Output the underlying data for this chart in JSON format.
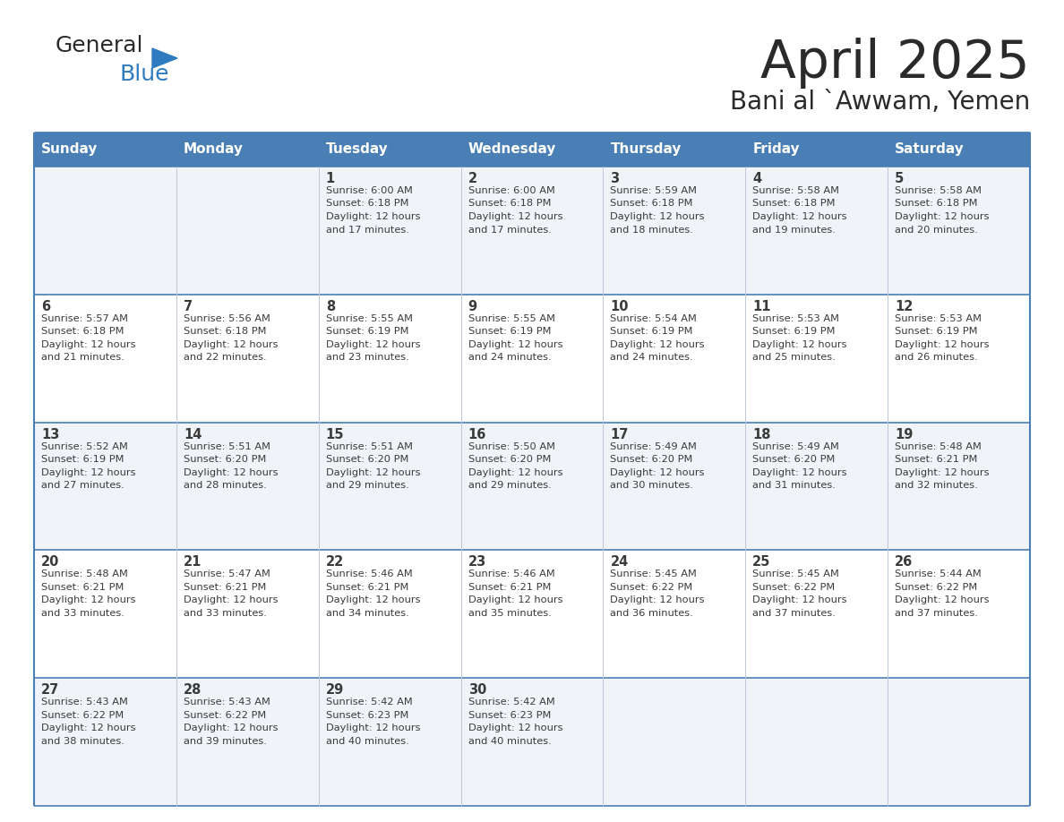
{
  "title": "April 2025",
  "subtitle": "Bani al `Awwam, Yemen",
  "days_of_week": [
    "Sunday",
    "Monday",
    "Tuesday",
    "Wednesday",
    "Thursday",
    "Friday",
    "Saturday"
  ],
  "header_bg": "#4a7fb5",
  "header_text": "#ffffff",
  "cell_bg_odd": "#f0f4f8",
  "cell_bg_even": "#ffffff",
  "border_color": "#4a7fb5",
  "row_border_color": "#4a7fb5",
  "text_color": "#3a3a3a",
  "weeks": [
    [
      {
        "day": "",
        "lines": []
      },
      {
        "day": "",
        "lines": []
      },
      {
        "day": "1",
        "lines": [
          "Sunrise: 6:00 AM",
          "Sunset: 6:18 PM",
          "Daylight: 12 hours",
          "and 17 minutes."
        ]
      },
      {
        "day": "2",
        "lines": [
          "Sunrise: 6:00 AM",
          "Sunset: 6:18 PM",
          "Daylight: 12 hours",
          "and 17 minutes."
        ]
      },
      {
        "day": "3",
        "lines": [
          "Sunrise: 5:59 AM",
          "Sunset: 6:18 PM",
          "Daylight: 12 hours",
          "and 18 minutes."
        ]
      },
      {
        "day": "4",
        "lines": [
          "Sunrise: 5:58 AM",
          "Sunset: 6:18 PM",
          "Daylight: 12 hours",
          "and 19 minutes."
        ]
      },
      {
        "day": "5",
        "lines": [
          "Sunrise: 5:58 AM",
          "Sunset: 6:18 PM",
          "Daylight: 12 hours",
          "and 20 minutes."
        ]
      }
    ],
    [
      {
        "day": "6",
        "lines": [
          "Sunrise: 5:57 AM",
          "Sunset: 6:18 PM",
          "Daylight: 12 hours",
          "and 21 minutes."
        ]
      },
      {
        "day": "7",
        "lines": [
          "Sunrise: 5:56 AM",
          "Sunset: 6:18 PM",
          "Daylight: 12 hours",
          "and 22 minutes."
        ]
      },
      {
        "day": "8",
        "lines": [
          "Sunrise: 5:55 AM",
          "Sunset: 6:19 PM",
          "Daylight: 12 hours",
          "and 23 minutes."
        ]
      },
      {
        "day": "9",
        "lines": [
          "Sunrise: 5:55 AM",
          "Sunset: 6:19 PM",
          "Daylight: 12 hours",
          "and 24 minutes."
        ]
      },
      {
        "day": "10",
        "lines": [
          "Sunrise: 5:54 AM",
          "Sunset: 6:19 PM",
          "Daylight: 12 hours",
          "and 24 minutes."
        ]
      },
      {
        "day": "11",
        "lines": [
          "Sunrise: 5:53 AM",
          "Sunset: 6:19 PM",
          "Daylight: 12 hours",
          "and 25 minutes."
        ]
      },
      {
        "day": "12",
        "lines": [
          "Sunrise: 5:53 AM",
          "Sunset: 6:19 PM",
          "Daylight: 12 hours",
          "and 26 minutes."
        ]
      }
    ],
    [
      {
        "day": "13",
        "lines": [
          "Sunrise: 5:52 AM",
          "Sunset: 6:19 PM",
          "Daylight: 12 hours",
          "and 27 minutes."
        ]
      },
      {
        "day": "14",
        "lines": [
          "Sunrise: 5:51 AM",
          "Sunset: 6:20 PM",
          "Daylight: 12 hours",
          "and 28 minutes."
        ]
      },
      {
        "day": "15",
        "lines": [
          "Sunrise: 5:51 AM",
          "Sunset: 6:20 PM",
          "Daylight: 12 hours",
          "and 29 minutes."
        ]
      },
      {
        "day": "16",
        "lines": [
          "Sunrise: 5:50 AM",
          "Sunset: 6:20 PM",
          "Daylight: 12 hours",
          "and 29 minutes."
        ]
      },
      {
        "day": "17",
        "lines": [
          "Sunrise: 5:49 AM",
          "Sunset: 6:20 PM",
          "Daylight: 12 hours",
          "and 30 minutes."
        ]
      },
      {
        "day": "18",
        "lines": [
          "Sunrise: 5:49 AM",
          "Sunset: 6:20 PM",
          "Daylight: 12 hours",
          "and 31 minutes."
        ]
      },
      {
        "day": "19",
        "lines": [
          "Sunrise: 5:48 AM",
          "Sunset: 6:21 PM",
          "Daylight: 12 hours",
          "and 32 minutes."
        ]
      }
    ],
    [
      {
        "day": "20",
        "lines": [
          "Sunrise: 5:48 AM",
          "Sunset: 6:21 PM",
          "Daylight: 12 hours",
          "and 33 minutes."
        ]
      },
      {
        "day": "21",
        "lines": [
          "Sunrise: 5:47 AM",
          "Sunset: 6:21 PM",
          "Daylight: 12 hours",
          "and 33 minutes."
        ]
      },
      {
        "day": "22",
        "lines": [
          "Sunrise: 5:46 AM",
          "Sunset: 6:21 PM",
          "Daylight: 12 hours",
          "and 34 minutes."
        ]
      },
      {
        "day": "23",
        "lines": [
          "Sunrise: 5:46 AM",
          "Sunset: 6:21 PM",
          "Daylight: 12 hours",
          "and 35 minutes."
        ]
      },
      {
        "day": "24",
        "lines": [
          "Sunrise: 5:45 AM",
          "Sunset: 6:22 PM",
          "Daylight: 12 hours",
          "and 36 minutes."
        ]
      },
      {
        "day": "25",
        "lines": [
          "Sunrise: 5:45 AM",
          "Sunset: 6:22 PM",
          "Daylight: 12 hours",
          "and 37 minutes."
        ]
      },
      {
        "day": "26",
        "lines": [
          "Sunrise: 5:44 AM",
          "Sunset: 6:22 PM",
          "Daylight: 12 hours",
          "and 37 minutes."
        ]
      }
    ],
    [
      {
        "day": "27",
        "lines": [
          "Sunrise: 5:43 AM",
          "Sunset: 6:22 PM",
          "Daylight: 12 hours",
          "and 38 minutes."
        ]
      },
      {
        "day": "28",
        "lines": [
          "Sunrise: 5:43 AM",
          "Sunset: 6:22 PM",
          "Daylight: 12 hours",
          "and 39 minutes."
        ]
      },
      {
        "day": "29",
        "lines": [
          "Sunrise: 5:42 AM",
          "Sunset: 6:23 PM",
          "Daylight: 12 hours",
          "and 40 minutes."
        ]
      },
      {
        "day": "30",
        "lines": [
          "Sunrise: 5:42 AM",
          "Sunset: 6:23 PM",
          "Daylight: 12 hours",
          "and 40 minutes."
        ]
      },
      {
        "day": "",
        "lines": []
      },
      {
        "day": "",
        "lines": []
      },
      {
        "day": "",
        "lines": []
      }
    ]
  ],
  "logo_general_color": "#2a2a2a",
  "logo_blue_color": "#2e7bbf",
  "logo_triangle_color": "#2e7bbf",
  "title_color": "#2a2a2a",
  "subtitle_color": "#2a2a2a"
}
